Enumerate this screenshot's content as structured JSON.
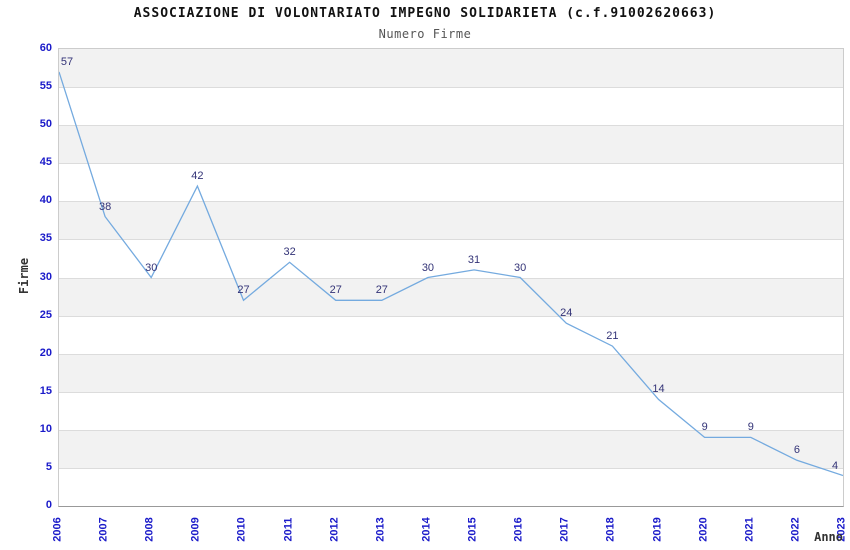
{
  "chart_data": {
    "type": "line",
    "title": "ASSOCIAZIONE DI VOLONTARIATO IMPEGNO SOLIDARIETA (c.f.91002620663)",
    "subtitle": "Numero Firme",
    "xlabel": "Anno",
    "ylabel": "Firme",
    "categories": [
      "2006",
      "2007",
      "2008",
      "2009",
      "2010",
      "2011",
      "2012",
      "2013",
      "2014",
      "2015",
      "2016",
      "2017",
      "2018",
      "2019",
      "2020",
      "2021",
      "2022",
      "2023"
    ],
    "values": [
      57,
      38,
      30,
      42,
      27,
      32,
      27,
      27,
      30,
      31,
      30,
      24,
      21,
      14,
      9,
      9,
      6,
      4
    ],
    "ylim": [
      0,
      60
    ],
    "ytick_step": 5,
    "yticks": [
      0,
      5,
      10,
      15,
      20,
      25,
      30,
      35,
      40,
      45,
      50,
      55,
      60
    ],
    "legend": "none",
    "grid": "horizontal-lines-with-alternating-bands",
    "colors": {
      "line": "#74aadf",
      "tick_label": "#1a1ac9",
      "data_label": "#333377",
      "band": "#f2f2f2",
      "gridline": "#dcdcdc",
      "title": "#111111",
      "subtitle": "#555555",
      "axis_title": "#333333"
    }
  }
}
